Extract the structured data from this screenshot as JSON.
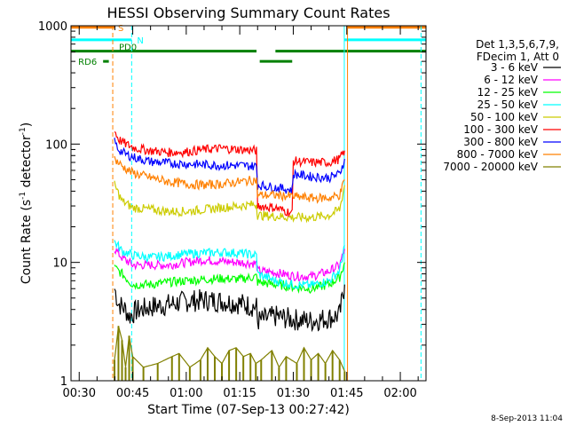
{
  "chart_data": {
    "type": "line",
    "title": "HESSI Observing Summary Count Rates",
    "xlabel": "Start Time (07-Sep-13 00:27:42)",
    "ylabel": "Count Rate (s",
    "ylabel_sup": "-1",
    "ylabel_mid": " detector",
    "ylabel_sup2": "-1",
    "ylabel_end": ")",
    "yscale": "log",
    "ylim": [
      1,
      1000
    ],
    "xlim_minutes": [
      27.7,
      127.2
    ],
    "x_ticks": [
      {
        "label": "00:30",
        "minutes": 30
      },
      {
        "label": "00:45",
        "minutes": 45
      },
      {
        "label": "01:00",
        "minutes": 60
      },
      {
        "label": "01:15",
        "minutes": 75
      },
      {
        "label": "01:30",
        "minutes": 90
      },
      {
        "label": "01:45",
        "minutes": 105
      },
      {
        "label": "02:00",
        "minutes": 120
      }
    ],
    "y_ticks": [
      {
        "label": "1",
        "value": 1
      },
      {
        "label": "10",
        "value": 10
      },
      {
        "label": "100",
        "value": 100
      },
      {
        "label": "1000",
        "value": 1000
      }
    ],
    "legend_header": [
      "Det 1,3,5,6,7,9,",
      "FDecim 1, Att 0"
    ],
    "legend_placement": "right",
    "series": [
      {
        "name": "3 - 6 keV",
        "color": "#000000",
        "points": [
          [
            39.9,
            6
          ],
          [
            41,
            4.5
          ],
          [
            43,
            4
          ],
          [
            44,
            3.5
          ],
          [
            46,
            3.9
          ],
          [
            50,
            4.2
          ],
          [
            55,
            4.4
          ],
          [
            60,
            4.7
          ],
          [
            65,
            4.8
          ],
          [
            70,
            4.7
          ],
          [
            75,
            4.5
          ],
          [
            79.7,
            4.2
          ],
          [
            80,
            3.2
          ],
          [
            85,
            3.5
          ],
          [
            90,
            3.3
          ],
          [
            95,
            3.2
          ],
          [
            100,
            3.4
          ],
          [
            103,
            3.6
          ],
          [
            104.4,
            6.5
          ]
        ]
      },
      {
        "name": "6 - 12 keV",
        "color": "#ff00ff",
        "points": [
          [
            39.9,
            13
          ],
          [
            42,
            11
          ],
          [
            45,
            9.5
          ],
          [
            50,
            9.5
          ],
          [
            55,
            9.5
          ],
          [
            60,
            10
          ],
          [
            65,
            10.5
          ],
          [
            70,
            10.2
          ],
          [
            75,
            10
          ],
          [
            79.7,
            9.8
          ],
          [
            80,
            8.5
          ],
          [
            85,
            8.2
          ],
          [
            90,
            7.7
          ],
          [
            95,
            7.6
          ],
          [
            100,
            8.4
          ],
          [
            103,
            9.5
          ],
          [
            104.4,
            13
          ]
        ]
      },
      {
        "name": "12 - 25 keV",
        "color": "#00ff00",
        "points": [
          [
            39.9,
            9
          ],
          [
            42,
            8
          ],
          [
            45,
            6.5
          ],
          [
            50,
            6.5
          ],
          [
            55,
            6.8
          ],
          [
            60,
            7
          ],
          [
            65,
            7.2
          ],
          [
            70,
            7.3
          ],
          [
            75,
            7.2
          ],
          [
            79.7,
            7.6
          ],
          [
            80,
            6.8
          ],
          [
            85,
            6.5
          ],
          [
            90,
            6.2
          ],
          [
            95,
            6
          ],
          [
            100,
            6.5
          ],
          [
            103,
            7.5
          ],
          [
            104.4,
            10
          ]
        ]
      },
      {
        "name": "25 - 50 keV",
        "color": "#00ffff",
        "points": [
          [
            39.9,
            15
          ],
          [
            42,
            12.5
          ],
          [
            45,
            11.5
          ],
          [
            50,
            11
          ],
          [
            55,
            11.3
          ],
          [
            60,
            11.8
          ],
          [
            65,
            12
          ],
          [
            70,
            12.2
          ],
          [
            75,
            12
          ],
          [
            79.7,
            11.5
          ],
          [
            80,
            8
          ],
          [
            85,
            7
          ],
          [
            90,
            6.5
          ],
          [
            95,
            6.4
          ],
          [
            100,
            7
          ],
          [
            103,
            8.5
          ],
          [
            104.4,
            14
          ]
        ]
      },
      {
        "name": "50 - 100 keV",
        "color": "#cccc00",
        "points": [
          [
            39.9,
            45
          ],
          [
            42,
            33
          ],
          [
            45,
            29
          ],
          [
            50,
            28
          ],
          [
            55,
            27
          ],
          [
            60,
            27
          ],
          [
            65,
            28
          ],
          [
            70,
            29
          ],
          [
            75,
            30
          ],
          [
            79.7,
            31
          ],
          [
            80,
            25
          ],
          [
            85,
            24.5
          ],
          [
            90,
            24
          ],
          [
            95,
            24
          ],
          [
            100,
            25
          ],
          [
            103,
            28
          ],
          [
            104.4,
            45
          ]
        ]
      },
      {
        "name": "100 - 300 keV",
        "color": "#ff0000",
        "points": [
          [
            39.9,
            130
          ],
          [
            41,
            110
          ],
          [
            43,
            100
          ],
          [
            46,
            92
          ],
          [
            50,
            88
          ],
          [
            55,
            85
          ],
          [
            60,
            86
          ],
          [
            65,
            90
          ],
          [
            70,
            92
          ],
          [
            75,
            90
          ],
          [
            79.7,
            88
          ],
          [
            80,
            30
          ],
          [
            85,
            29
          ],
          [
            89.7,
            26
          ],
          [
            90,
            72
          ],
          [
            95,
            70
          ],
          [
            100,
            70
          ],
          [
            103,
            75
          ],
          [
            104.4,
            88
          ]
        ]
      },
      {
        "name": "300 - 800 keV",
        "color": "#0000ff",
        "points": [
          [
            39.9,
            105
          ],
          [
            41,
            90
          ],
          [
            43,
            82
          ],
          [
            46,
            76
          ],
          [
            50,
            71
          ],
          [
            55,
            69
          ],
          [
            60,
            68
          ],
          [
            65,
            67
          ],
          [
            70,
            66
          ],
          [
            75,
            66
          ],
          [
            79.7,
            65
          ],
          [
            80,
            45
          ],
          [
            85,
            43
          ],
          [
            89.7,
            41
          ],
          [
            90,
            56
          ],
          [
            95,
            53
          ],
          [
            100,
            52
          ],
          [
            103,
            56
          ],
          [
            104.4,
            75
          ]
        ]
      },
      {
        "name": "800 - 7000 keV",
        "color": "#ff8000",
        "points": [
          [
            39.9,
            75
          ],
          [
            42,
            65
          ],
          [
            45,
            57
          ],
          [
            50,
            52
          ],
          [
            55,
            48
          ],
          [
            60,
            46
          ],
          [
            65,
            45
          ],
          [
            70,
            46
          ],
          [
            75,
            48
          ],
          [
            79.7,
            50
          ],
          [
            80,
            37
          ],
          [
            85,
            37
          ],
          [
            90,
            36
          ],
          [
            95,
            35
          ],
          [
            100,
            35
          ],
          [
            103,
            37
          ],
          [
            104.4,
            50
          ]
        ]
      },
      {
        "name": "7000 - 20000 keV",
        "color": "#808000",
        "points": [
          [
            39.9,
            1.5
          ],
          [
            41,
            2.9
          ],
          [
            42,
            2.2
          ],
          [
            43,
            1.3
          ],
          [
            44,
            2.4
          ],
          [
            45,
            1.6
          ],
          [
            48,
            1.3
          ],
          [
            52,
            1.4
          ],
          [
            56,
            1.6
          ],
          [
            58,
            1.7
          ],
          [
            61,
            1.3
          ],
          [
            64,
            1.5
          ],
          [
            66,
            1.9
          ],
          [
            68,
            1.6
          ],
          [
            70,
            1.4
          ],
          [
            72,
            1.8
          ],
          [
            74,
            1.9
          ],
          [
            76,
            1.6
          ],
          [
            78,
            1.7
          ],
          [
            79.5,
            1.4
          ],
          [
            81,
            1.5
          ],
          [
            84,
            1.8
          ],
          [
            86,
            1.3
          ],
          [
            88,
            1.6
          ],
          [
            91,
            1.4
          ],
          [
            93,
            1.9
          ],
          [
            95,
            1.5
          ],
          [
            97,
            1.7
          ],
          [
            99,
            1.4
          ],
          [
            101,
            1.8
          ],
          [
            103,
            1.5
          ],
          [
            104.4,
            1.2
          ]
        ]
      }
    ],
    "flag_bars": [
      {
        "label": "S",
        "color": "#ff8000",
        "segments": [
          [
            27.7,
            39.9
          ],
          [
            105,
            127.2
          ]
        ],
        "level": 970
      },
      {
        "label": "N",
        "color": "#00ffff",
        "segments": [
          [
            27.7,
            44.7
          ],
          [
            104.2,
            127.2
          ]
        ],
        "level": 760
      },
      {
        "label": "PD0",
        "color": "#008000",
        "segments": [
          [
            27.7,
            79.7
          ],
          [
            85,
            127.2
          ]
        ],
        "level": 610
      },
      {
        "label": "",
        "color": "#008000",
        "segments": [
          [
            80.6,
            89.7
          ]
        ],
        "level": 500
      },
      {
        "label": "RD6",
        "color": "#008000",
        "segments": [
          [
            36.7,
            38.3
          ]
        ],
        "level": 500
      }
    ],
    "vertical_markers": [
      {
        "minutes": 39.4,
        "color": "#ff8000",
        "style": "dashed"
      },
      {
        "minutes": 44.7,
        "color": "#00ffff",
        "style": "dashed"
      },
      {
        "minutes": 104.3,
        "color": "#00ffff",
        "style": "solid"
      },
      {
        "minutes": 105.2,
        "color": "#ff8000",
        "style": "solid"
      },
      {
        "minutes": 125.8,
        "color": "#00ffff",
        "style": "dashed"
      }
    ],
    "timestamp": "8-Sep-2013 11:04"
  }
}
